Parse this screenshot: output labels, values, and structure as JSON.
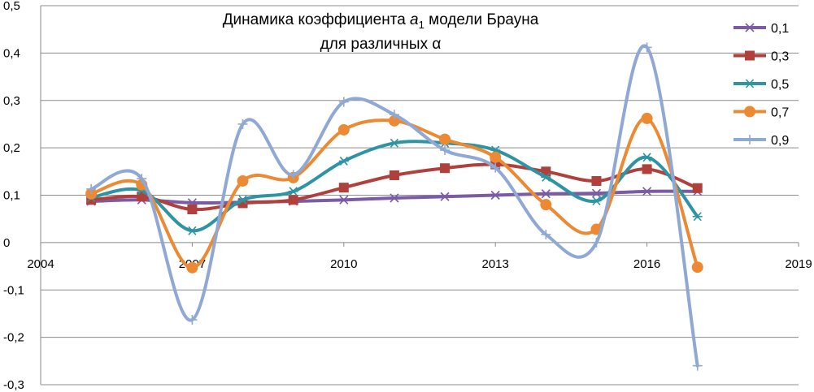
{
  "chart_data": {
    "type": "line",
    "title_line1_prefix": "Динамика коэффициента ",
    "title_symbol": "a",
    "title_subscript": "1",
    "title_line1_suffix": " модели Брауна",
    "title_line2": "для различных α",
    "xlabel": "",
    "ylabel": "",
    "xlim": [
      2004,
      2019
    ],
    "ylim": [
      -0.3,
      0.5
    ],
    "x_ticks": [
      2004,
      2007,
      2010,
      2013,
      2016,
      2019
    ],
    "x_tick_labels": [
      "2004",
      "2007",
      "2010",
      "2013",
      "2016",
      "2019"
    ],
    "y_ticks": [
      -0.3,
      -0.2,
      -0.1,
      0,
      0.1,
      0.2,
      0.3,
      0.4,
      0.5
    ],
    "y_tick_labels": [
      "-0,3",
      "-0,2",
      "-0,1",
      "0",
      "0,1",
      "0,2",
      "0,3",
      "0,4",
      "0,5"
    ],
    "grid": "horizontal",
    "legend_position": "right",
    "x": [
      2005,
      2006,
      2007,
      2008,
      2009,
      2010,
      2011,
      2012,
      2013,
      2014,
      2015,
      2016,
      2017
    ],
    "series": [
      {
        "name": "0,1",
        "color": "#7b5ba6",
        "marker": "x",
        "values": [
          0.087,
          0.09,
          0.084,
          0.085,
          0.087,
          0.09,
          0.094,
          0.097,
          0.1,
          0.103,
          0.104,
          0.108,
          0.108
        ]
      },
      {
        "name": "0,3",
        "color": "#b0403c",
        "marker": "square",
        "values": [
          0.09,
          0.097,
          0.07,
          0.083,
          0.09,
          0.116,
          0.142,
          0.157,
          0.165,
          0.15,
          0.13,
          0.155,
          0.115
        ]
      },
      {
        "name": "0,5",
        "color": "#2e94a3",
        "marker": "asterisk",
        "values": [
          0.095,
          0.11,
          0.025,
          0.09,
          0.108,
          0.172,
          0.21,
          0.21,
          0.195,
          0.138,
          0.088,
          0.18,
          0.055
        ]
      },
      {
        "name": "0,7",
        "color": "#ec8a33",
        "marker": "circle",
        "values": [
          0.103,
          0.122,
          -0.053,
          0.13,
          0.137,
          0.238,
          0.257,
          0.218,
          0.18,
          0.08,
          0.028,
          0.262,
          -0.052
        ]
      },
      {
        "name": "0,9",
        "color": "#8fa8d4",
        "marker": "plus",
        "values": [
          0.113,
          0.135,
          -0.163,
          0.25,
          0.143,
          0.297,
          0.27,
          0.195,
          0.158,
          0.017,
          0.0,
          0.412,
          -0.26
        ]
      }
    ]
  }
}
